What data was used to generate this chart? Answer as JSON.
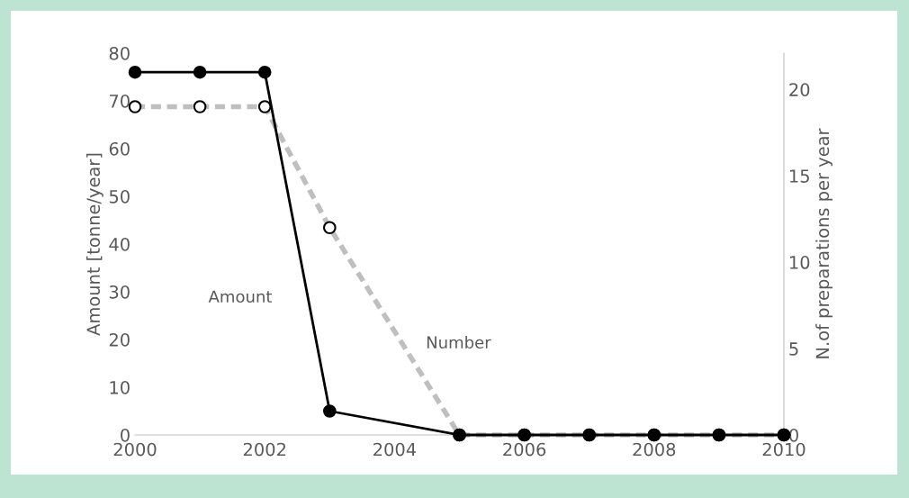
{
  "chart_data": {
    "type": "line",
    "ylabel": "Amount [tonne/year]",
    "y2label": "N.of preparations per year",
    "x": [
      2000,
      2001,
      2002,
      2003,
      2005,
      2006,
      2007,
      2008,
      2009,
      2010
    ],
    "series": [
      {
        "name": "Amount",
        "color": "#000000",
        "line_style": "solid",
        "values": [
          76,
          76,
          76,
          5,
          0,
          0,
          0,
          0,
          0,
          0
        ]
      },
      {
        "name": "Number",
        "color": "#bfbfbf",
        "line_style": "dashed",
        "axis": "y2",
        "values": [
          19,
          19,
          19,
          12,
          0,
          0,
          0,
          0,
          0,
          0
        ]
      }
    ],
    "xlim": [
      2000,
      2010
    ],
    "xticks": [
      2000,
      2002,
      2004,
      2006,
      2008,
      2010
    ],
    "ylim": [
      0,
      80
    ],
    "yticks": [
      0,
      10,
      20,
      30,
      40,
      50,
      60,
      70,
      80
    ],
    "y2lim": [
      0,
      22.1
    ],
    "y2ticks": [
      0,
      5,
      10,
      15,
      20
    ],
    "marker": "circle",
    "grid": false,
    "legend": false
  }
}
